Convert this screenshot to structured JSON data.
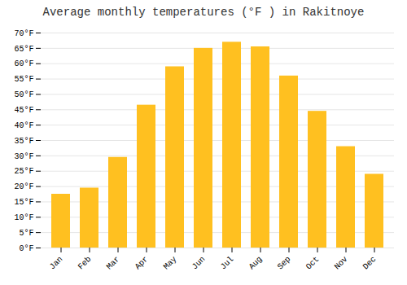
{
  "chart_data": {
    "type": "bar",
    "title": "Average monthly temperatures (°F ) in Rakitnoye",
    "categories": [
      "Jan",
      "Feb",
      "Mar",
      "Apr",
      "May",
      "Jun",
      "Jul",
      "Aug",
      "Sep",
      "Oct",
      "Nov",
      "Dec"
    ],
    "values": [
      17.5,
      19.5,
      29.5,
      46.5,
      59.0,
      65.0,
      67.0,
      65.5,
      56.0,
      44.5,
      33.0,
      24.0
    ],
    "color": "#FFC020",
    "ylim": [
      0,
      70
    ],
    "yticks": [
      {
        "value": 0,
        "label": "0°F"
      },
      {
        "value": 5,
        "label": "5°F"
      },
      {
        "value": 10,
        "label": "10°F"
      },
      {
        "value": 15,
        "label": "15°F"
      },
      {
        "value": 20,
        "label": "20°F"
      },
      {
        "value": 25,
        "label": "25°F"
      },
      {
        "value": 30,
        "label": "30°F"
      },
      {
        "value": 35,
        "label": "35°F"
      },
      {
        "value": 40,
        "label": "40°F"
      },
      {
        "value": 45,
        "label": "45°F"
      },
      {
        "value": 50,
        "label": "50°F"
      },
      {
        "value": 55,
        "label": "55°F"
      },
      {
        "value": 60,
        "label": "60°F"
      },
      {
        "value": 65,
        "label": "65°F"
      },
      {
        "value": 70,
        "label": "70°F"
      }
    ],
    "grid": true
  }
}
